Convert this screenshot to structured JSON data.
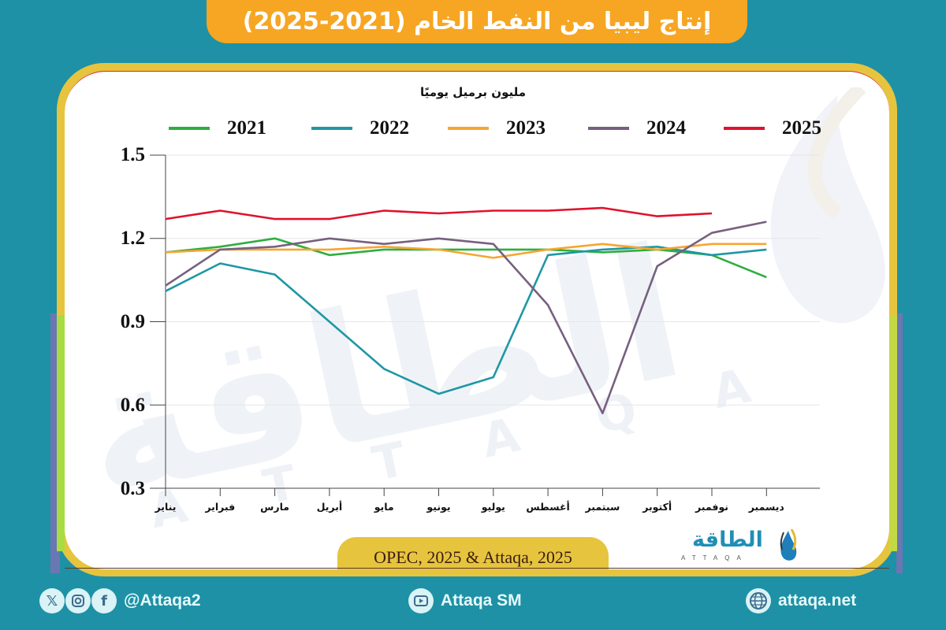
{
  "header": {
    "title": "إنتاج ليبيا من النفط الخام (2021-2025)"
  },
  "chart_data": {
    "type": "line",
    "title": "إنتاج ليبيا من النفط الخام (2021-2025)",
    "ylabel": "مليون برميل يوميًا",
    "xlabel": "",
    "ylim": [
      0.3,
      1.5
    ],
    "yticks": [
      "1.5",
      "1.2",
      "0.9",
      "0.6",
      "0.3"
    ],
    "grid": true,
    "legend_position": "top",
    "categories": [
      "يناير",
      "فبراير",
      "مارس",
      "أبريل",
      "مايو",
      "يونيو",
      "يوليو",
      "أغسطس",
      "سبتمبر",
      "أكتوبر",
      "نوفمبر",
      "ديسمبر"
    ],
    "series": [
      {
        "name": "2021",
        "color": "#2fae3f",
        "values": [
          1.15,
          1.17,
          1.2,
          1.14,
          1.16,
          1.16,
          1.16,
          1.16,
          1.15,
          1.16,
          1.14,
          1.06
        ]
      },
      {
        "name": "2022",
        "color": "#1f97a5",
        "values": [
          1.01,
          1.11,
          1.07,
          0.9,
          0.73,
          0.64,
          0.7,
          1.14,
          1.16,
          1.17,
          1.14,
          1.16
        ]
      },
      {
        "name": "2023",
        "color": "#f7a530",
        "values": [
          1.15,
          1.16,
          1.16,
          1.16,
          1.17,
          1.16,
          1.13,
          1.16,
          1.18,
          1.16,
          1.18,
          1.18
        ]
      },
      {
        "name": "2024",
        "color": "#77607f",
        "values": [
          1.03,
          1.16,
          1.17,
          1.2,
          1.18,
          1.2,
          1.18,
          0.96,
          0.57,
          1.1,
          1.22,
          1.26
        ]
      },
      {
        "name": "2025",
        "color": "#e0122c",
        "values": [
          1.27,
          1.3,
          1.27,
          1.27,
          1.3,
          1.29,
          1.3,
          1.3,
          1.31,
          1.28,
          1.29,
          null
        ]
      }
    ]
  },
  "source": {
    "text": "OPEC, 2025 & Attaqa, 2025"
  },
  "logo": {
    "arabic": "الطاقة",
    "latin": "ATTAQA"
  },
  "watermark": {
    "arabic": "الطاقة",
    "latin": "A T T A Q A"
  },
  "footer": {
    "social_handle": "@Attaqa2",
    "social_icons": [
      "x-icon",
      "instagram-icon",
      "facebook-icon"
    ],
    "youtube_label": "Attaqa SM",
    "website": "attaqa.net"
  },
  "colors": {
    "background": "#1e91a6",
    "title_bar": "#f6a623",
    "frame": "#e7c43e"
  }
}
